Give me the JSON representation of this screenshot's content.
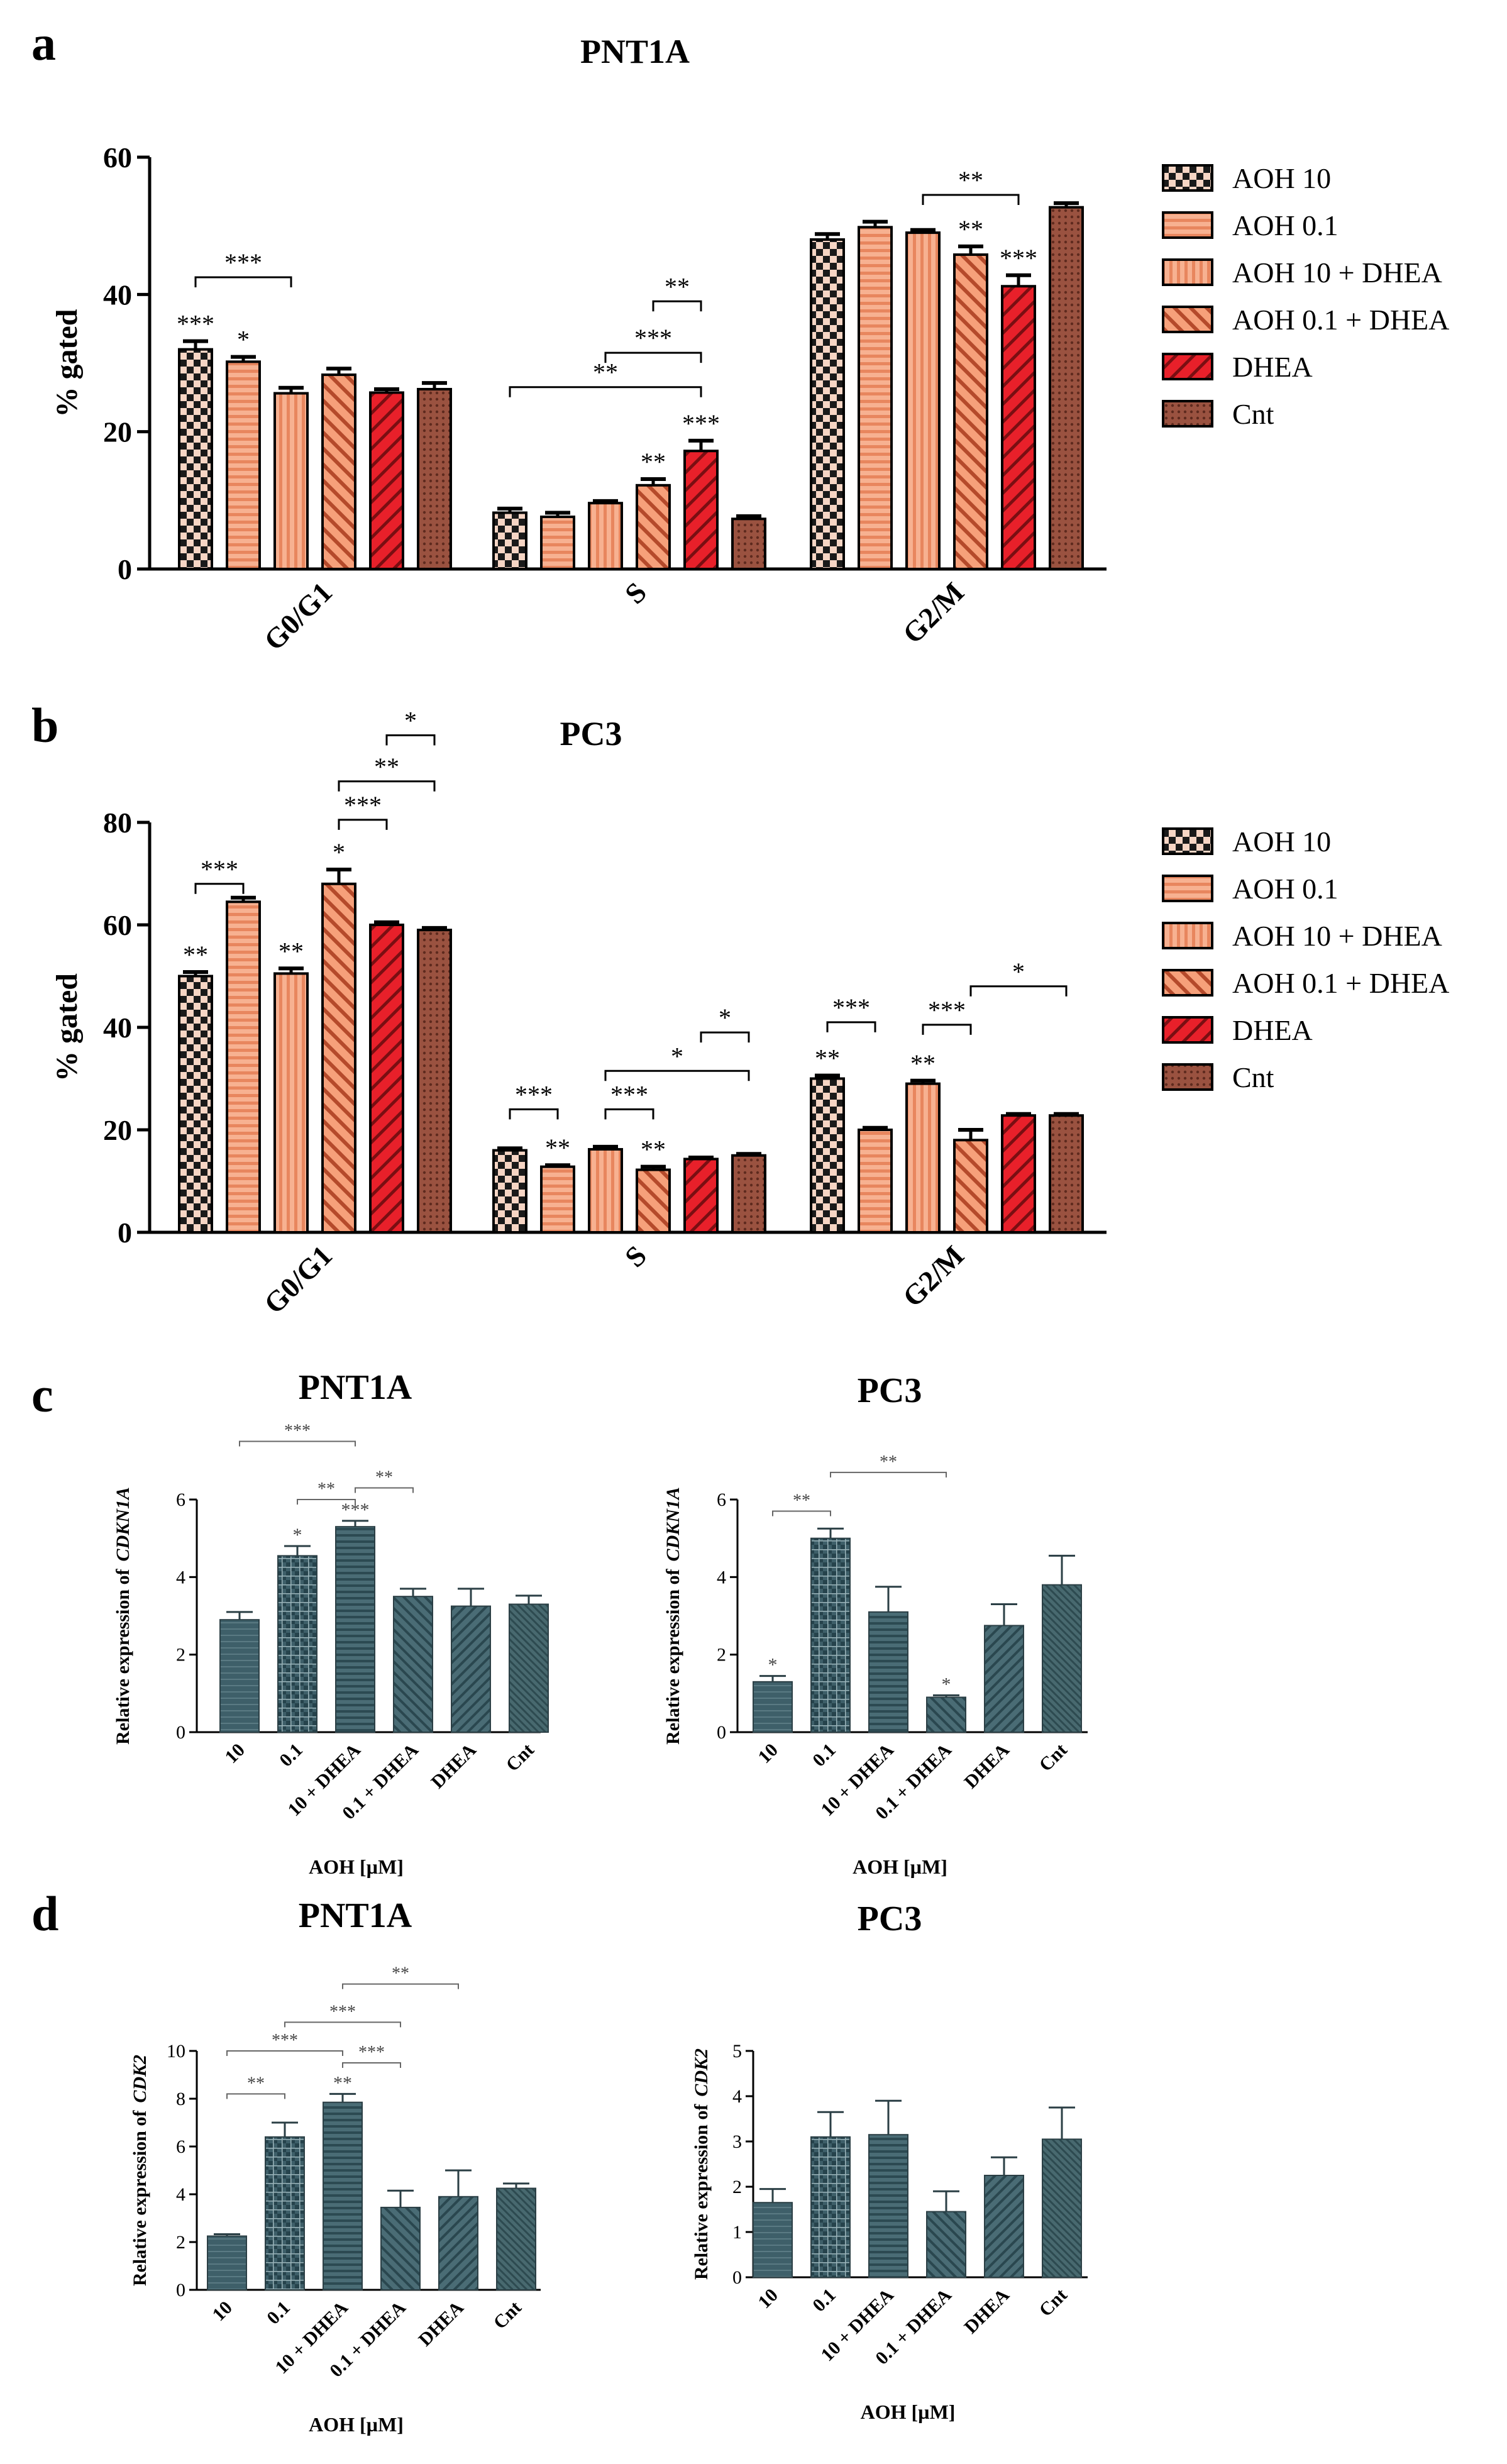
{
  "colors": {
    "checker_light": "#f6d5c4",
    "salmon": "#f4a07a",
    "salmon_dark": "#e8865e",
    "red": "#e8202a",
    "brown": "#8a4636",
    "teal": "#3d5f68",
    "teal_light": "#9bb4ba"
  },
  "chart_data": [
    {
      "id": "a",
      "panel_label": "a",
      "title": "PNT1A",
      "type": "bar",
      "ylabel": "% gated",
      "ylim": [
        0,
        60
      ],
      "yticks": [
        0,
        20,
        40,
        60
      ],
      "categories": [
        "G0/G1",
        "S",
        "G2/M"
      ],
      "series": [
        {
          "name": "AOH 10",
          "pattern": "checker",
          "values": [
            32,
            8.2,
            48
          ],
          "errors": [
            1.2,
            0.6,
            0.8
          ]
        },
        {
          "name": "AOH 0.1",
          "pattern": "hlines",
          "values": [
            30.2,
            7.6,
            49.8
          ],
          "errors": [
            0.7,
            0.6,
            0.8
          ]
        },
        {
          "name": "AOH 10 + DHEA",
          "pattern": "vlines",
          "values": [
            25.6,
            9.6,
            49
          ],
          "errors": [
            0.8,
            0.3,
            0.4
          ]
        },
        {
          "name": "AOH 0.1 + DHEA",
          "pattern": "diag",
          "values": [
            28.3,
            12.2,
            45.8
          ],
          "errors": [
            0.9,
            0.9,
            1.2
          ]
        },
        {
          "name": "DHEA",
          "pattern": "diagred",
          "values": [
            25.7,
            17.2,
            41.2
          ],
          "errors": [
            0.5,
            1.5,
            1.6
          ]
        },
        {
          "name": "Cnt",
          "pattern": "brown",
          "values": [
            26.2,
            7.3,
            52.7
          ],
          "errors": [
            0.9,
            0.4,
            0.6
          ]
        }
      ],
      "bar_stars": [
        {
          "cat": 0,
          "ser": 0,
          "text": "***"
        },
        {
          "cat": 0,
          "ser": 1,
          "text": "*"
        },
        {
          "cat": 1,
          "ser": 3,
          "text": "**"
        },
        {
          "cat": 1,
          "ser": 4,
          "text": "***"
        },
        {
          "cat": 2,
          "ser": 3,
          "text": "**"
        },
        {
          "cat": 2,
          "ser": 4,
          "text": "***"
        }
      ],
      "brackets": [
        {
          "cat1": 0,
          "ser1": 0,
          "cat2": 0,
          "ser2": 2,
          "level": 42.5,
          "text": "***"
        },
        {
          "cat1": 1,
          "ser1": 3,
          "cat2": 1,
          "ser2": 4,
          "level": 39,
          "text": "**"
        },
        {
          "cat1": 1,
          "ser1": 2,
          "cat2": 1,
          "ser2": 4,
          "level": 31.5,
          "text": "***"
        },
        {
          "cat1": 1,
          "ser1": 0,
          "cat2": 1,
          "ser2": 4,
          "level": 26.5,
          "text": "**"
        },
        {
          "cat1": 2,
          "ser1": 2,
          "cat2": 2,
          "ser2": 4,
          "level": 54.5,
          "text": "**"
        }
      ]
    },
    {
      "id": "b",
      "panel_label": "b",
      "title": "PC3",
      "type": "bar",
      "ylabel": "% gated",
      "ylim": [
        0,
        80
      ],
      "yticks": [
        0,
        20,
        40,
        60,
        80
      ],
      "categories": [
        "G0/G1",
        "S",
        "G2/M"
      ],
      "series": [
        {
          "name": "AOH 10",
          "pattern": "checker",
          "values": [
            50,
            16,
            30
          ],
          "errors": [
            0.8,
            0.4,
            0.6
          ]
        },
        {
          "name": "AOH 0.1",
          "pattern": "hlines",
          "values": [
            64.5,
            12.8,
            20
          ],
          "errors": [
            0.8,
            0.3,
            0.4
          ]
        },
        {
          "name": "AOH 10 + DHEA",
          "pattern": "vlines",
          "values": [
            50.5,
            16.2,
            29
          ],
          "errors": [
            1.0,
            0.5,
            0.6
          ]
        },
        {
          "name": "AOH 0.1 + DHEA",
          "pattern": "diag",
          "values": [
            68,
            12.2,
            18
          ],
          "errors": [
            2.8,
            0.6,
            2.0
          ]
        },
        {
          "name": "DHEA",
          "pattern": "diagred",
          "values": [
            60,
            14.3,
            22.8
          ],
          "errors": [
            0.5,
            0.3,
            0.3
          ]
        },
        {
          "name": "Cnt",
          "pattern": "brown",
          "values": [
            59,
            15,
            22.8
          ],
          "errors": [
            0.4,
            0.3,
            0.3
          ]
        }
      ],
      "bar_stars": [
        {
          "cat": 0,
          "ser": 0,
          "text": "**"
        },
        {
          "cat": 0,
          "ser": 2,
          "text": "**"
        },
        {
          "cat": 0,
          "ser": 3,
          "text": "*"
        },
        {
          "cat": 1,
          "ser": 1,
          "text": "**"
        },
        {
          "cat": 1,
          "ser": 3,
          "text": "**"
        },
        {
          "cat": 2,
          "ser": 0,
          "text": "**"
        },
        {
          "cat": 2,
          "ser": 2,
          "text": "**"
        }
      ],
      "brackets": [
        {
          "cat1": 0,
          "ser1": 0,
          "cat2": 0,
          "ser2": 1,
          "level": 68,
          "text": "***"
        },
        {
          "cat1": 0,
          "ser1": 4,
          "cat2": 0,
          "ser2": 5,
          "level": 97,
          "text": "*"
        },
        {
          "cat1": 0,
          "ser1": 3,
          "cat2": 0,
          "ser2": 5,
          "level": 88,
          "text": "**"
        },
        {
          "cat1": 0,
          "ser1": 3,
          "cat2": 0,
          "ser2": 4,
          "level": 80.5,
          "text": "***"
        },
        {
          "cat1": 1,
          "ser1": 0,
          "cat2": 1,
          "ser2": 1,
          "level": 24,
          "text": "***"
        },
        {
          "cat1": 1,
          "ser1": 4,
          "cat2": 1,
          "ser2": 5,
          "level": 39,
          "text": "*"
        },
        {
          "cat1": 1,
          "ser1": 2,
          "cat2": 1,
          "ser2": 5,
          "level": 31.5,
          "text": "*"
        },
        {
          "cat1": 1,
          "ser1": 2,
          "cat2": 1,
          "ser2": 3,
          "level": 24,
          "text": "***"
        },
        {
          "cat1": 2,
          "ser1": 0,
          "cat2": 2,
          "ser2": 1,
          "level": 41,
          "text": "***"
        },
        {
          "cat1": 2,
          "ser1": 3,
          "cat2": 2,
          "ser2": 5,
          "level": 48,
          "text": "*"
        },
        {
          "cat1": 2,
          "ser1": 2,
          "cat2": 2,
          "ser2": 3,
          "level": 40.5,
          "text": "***"
        }
      ]
    },
    {
      "id": "c1",
      "panel_label": "c",
      "title": "PNT1A",
      "type": "bar",
      "ylabel_prefix": "Relative expression of",
      "ylabel_gene": "CDKN1A",
      "xlabel": "AOH [µM]",
      "ylim": [
        0,
        6
      ],
      "yticks": [
        0,
        2,
        4,
        6
      ],
      "categories": [
        "10",
        "0.1",
        "10 + DHEA",
        "0.1 + DHEA",
        "DHEA",
        "Cnt"
      ],
      "values": [
        2.9,
        4.55,
        5.3,
        3.5,
        3.25,
        3.3
      ],
      "errors": [
        0.2,
        0.25,
        0.15,
        0.2,
        0.45,
        0.22
      ],
      "bar_stars": [
        {
          "idx": 1,
          "text": "*"
        },
        {
          "idx": 2,
          "text": "***"
        }
      ],
      "brackets": [
        {
          "i": 1,
          "j": 2,
          "level": 6.0,
          "text": "**"
        },
        {
          "i": 3,
          "j": 2,
          "level": 6.3,
          "text": "**"
        },
        {
          "i": 0,
          "j": 2,
          "level": 7.5,
          "text": "***"
        }
      ]
    },
    {
      "id": "c2",
      "panel_label": "",
      "title": "PC3",
      "type": "bar",
      "ylabel_prefix": "Relative expression of",
      "ylabel_gene": "CDKN1A",
      "xlabel": "AOH [µM]",
      "ylim": [
        0,
        6
      ],
      "yticks": [
        0,
        2,
        4,
        6
      ],
      "categories": [
        "10",
        "0.1",
        "10 + DHEA",
        "0.1 + DHEA",
        "DHEA",
        "Cnt"
      ],
      "values": [
        1.3,
        5.0,
        3.1,
        0.9,
        2.75,
        3.8
      ],
      "errors": [
        0.15,
        0.25,
        0.65,
        0.05,
        0.55,
        0.75
      ],
      "bar_stars": [
        {
          "idx": 0,
          "text": "*"
        },
        {
          "idx": 3,
          "text": "*"
        }
      ],
      "brackets": [
        {
          "i": 0,
          "j": 1,
          "level": 5.7,
          "text": "**"
        },
        {
          "i": 1,
          "j": 3,
          "level": 6.7,
          "text": "**"
        }
      ]
    },
    {
      "id": "d1",
      "panel_label": "d",
      "title": "PNT1A",
      "type": "bar",
      "ylabel_prefix": "Relative expression of",
      "ylabel_gene": "CDK2",
      "xlabel": "AOH [µM]",
      "ylim": [
        0,
        10
      ],
      "yticks": [
        0,
        2,
        4,
        6,
        8,
        10
      ],
      "categories": [
        "10",
        "0.1",
        "10 + DHEA",
        "0.1 + DHEA",
        "DHEA",
        "Cnt"
      ],
      "values": [
        2.25,
        6.4,
        7.85,
        3.45,
        3.9,
        4.25
      ],
      "errors": [
        0.08,
        0.6,
        0.35,
        0.7,
        1.1,
        0.2
      ],
      "bar_stars": [
        {
          "idx": 2,
          "text": "**"
        }
      ],
      "brackets": [
        {
          "i": 0,
          "j": 1,
          "level": 8.2,
          "text": "**"
        },
        {
          "i": 2,
          "j": 3,
          "level": 9.5,
          "text": "***"
        },
        {
          "i": 0,
          "j": 2,
          "level": 10.0,
          "text": "***"
        },
        {
          "i": 1,
          "j": 3,
          "level": 11.2,
          "text": "***"
        },
        {
          "i": 2,
          "j": 4,
          "level": 12.8,
          "text": "**"
        }
      ]
    },
    {
      "id": "d2",
      "panel_label": "",
      "title": "PC3",
      "type": "bar",
      "ylabel_prefix": "Relative expression of",
      "ylabel_gene": "CDK2",
      "xlabel": "AOH [µM]",
      "ylim": [
        0,
        5
      ],
      "yticks": [
        0,
        1,
        2,
        3,
        4,
        5
      ],
      "categories": [
        "10",
        "0.1",
        "10 + DHEA",
        "0.1 + DHEA",
        "DHEA",
        "Cnt"
      ],
      "values": [
        1.65,
        3.1,
        3.15,
        1.45,
        2.25,
        3.05
      ],
      "errors": [
        0.3,
        0.55,
        0.75,
        0.45,
        0.4,
        0.7
      ],
      "bar_stars": [],
      "brackets": []
    }
  ]
}
